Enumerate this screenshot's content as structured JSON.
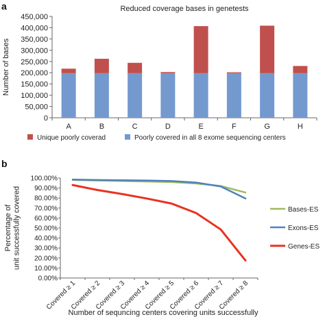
{
  "panels": {
    "a": {
      "label": "a"
    },
    "b": {
      "label": "b"
    }
  },
  "chart_data": [
    {
      "type": "bar",
      "stacked": true,
      "title": "Reduced coverage bases in genetests",
      "xlabel": "",
      "ylabel": "Number of bases",
      "ylim": [
        0,
        450000
      ],
      "yticks": [
        0,
        50000,
        100000,
        150000,
        200000,
        250000,
        300000,
        350000,
        400000,
        450000
      ],
      "ytick_labels": [
        "0",
        "50,000",
        "100,000",
        "150,000",
        "200,000",
        "250,000",
        "300,000",
        "350,000",
        "400,000",
        "450,000"
      ],
      "categories": [
        "A",
        "B",
        "C",
        "D",
        "E",
        "F",
        "G",
        "H"
      ],
      "series": [
        {
          "name": "Poorly covered in all 8 exome sequencing centers",
          "color": "#7499cf",
          "values": [
            198000,
            198000,
            198000,
            198000,
            198000,
            198000,
            198000,
            198000
          ]
        },
        {
          "name": "Unique poorly coverad",
          "color": "#c0504d",
          "values": [
            20000,
            64000,
            46000,
            5000,
            209000,
            4000,
            211000,
            32000
          ]
        }
      ],
      "legend_position": "bottom",
      "grid": false
    },
    {
      "type": "line",
      "title": "",
      "xlabel": "Number of sequncing centers covering units successfully",
      "ylabel": "Percentage of unit successfully covered",
      "ylim": [
        0,
        1
      ],
      "yticks": [
        0,
        0.1,
        0.2,
        0.3,
        0.4,
        0.5,
        0.6,
        0.7,
        0.8,
        0.9,
        1.0
      ],
      "ytick_labels": [
        "0.00%",
        "10.00%",
        "20.00%",
        "30.00%",
        "40.00%",
        "50.00%",
        "60.00%",
        "70.00%",
        "80.00%",
        "90.00%",
        "100.00%"
      ],
      "categories": [
        "Covered ≥ 1",
        "Covered ≥ 2",
        "Covered ≥ 3",
        "Covered ≥ 4",
        "Covered ≥ 5",
        "Covered ≥ 6",
        "Covered ≥ 7",
        "Covered ≥ 8"
      ],
      "series": [
        {
          "name": "Bases-ES",
          "color": "#9bbb59",
          "values": [
            0.98,
            0.975,
            0.97,
            0.965,
            0.96,
            0.945,
            0.92,
            0.855
          ]
        },
        {
          "name": "Exons-ES",
          "color": "#4f81bd",
          "values": [
            0.985,
            0.98,
            0.978,
            0.975,
            0.97,
            0.955,
            0.915,
            0.795
          ]
        },
        {
          "name": "Genes-ES",
          "color": "#e8321f",
          "values": [
            0.93,
            0.88,
            0.84,
            0.795,
            0.745,
            0.65,
            0.485,
            0.175
          ]
        }
      ],
      "legend_position": "right",
      "grid": false
    }
  ]
}
